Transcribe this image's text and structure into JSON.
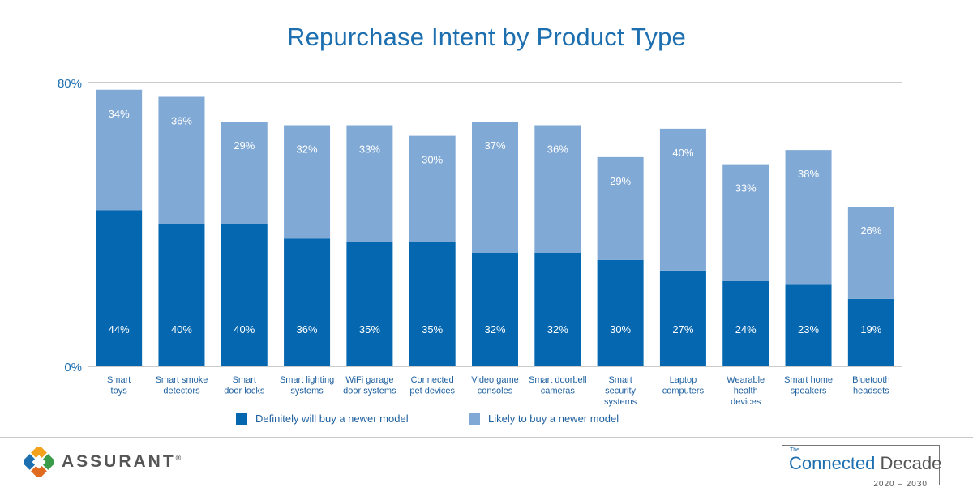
{
  "chart_data": {
    "type": "stacked-bar",
    "title": "Repurchase Intent by Product Type",
    "categories": [
      [
        "Smart",
        "toys"
      ],
      [
        "Smart smoke",
        "detectors"
      ],
      [
        "Smart",
        "door locks"
      ],
      [
        "Smart lighting",
        "systems"
      ],
      [
        "WiFi garage",
        "door systems"
      ],
      [
        "Connected",
        "pet devices"
      ],
      [
        "Video game",
        "consoles"
      ],
      [
        "Smart doorbell",
        "cameras"
      ],
      [
        "Smart",
        "security",
        "systems"
      ],
      [
        "Laptop",
        "computers"
      ],
      [
        "Wearable",
        "health",
        "devices"
      ],
      [
        "Smart home",
        "speakers"
      ],
      [
        "Bluetooth",
        "headsets"
      ]
    ],
    "series": [
      {
        "name": "Definitely will buy a newer model",
        "color": "#0467b0",
        "values": [
          44,
          40,
          40,
          36,
          35,
          35,
          32,
          32,
          30,
          27,
          24,
          23,
          19
        ],
        "labels": [
          "44%",
          "40%",
          "40%",
          "36%",
          "35%",
          "35%",
          "32%",
          "32%",
          "30%",
          "27%",
          "24%",
          "23%",
          "19%"
        ]
      },
      {
        "name": "Likely to buy a newer model",
        "color": "#80a9d5",
        "values": [
          34,
          36,
          29,
          32,
          33,
          30,
          37,
          36,
          29,
          40,
          33,
          38,
          26
        ],
        "labels": [
          "34%",
          "36%",
          "29%",
          "32%",
          "33%",
          "30%",
          "37%",
          "36%",
          "29%",
          "40%",
          "33%",
          "38%",
          "26%"
        ]
      }
    ],
    "ylim": [
      0,
      80
    ],
    "yticks": [
      "0%",
      "80%"
    ],
    "legend_position": "bottom"
  },
  "legend": {
    "definitely": "Definitely will buy a newer model",
    "likely": "Likely to buy a newer model"
  },
  "footer": {
    "brand": "ASSURANT",
    "brand_mark": "®",
    "decade_the": "The",
    "decade_word1": "Connected",
    "decade_word2": "Decade",
    "decade_years": "2020 – 2030"
  }
}
